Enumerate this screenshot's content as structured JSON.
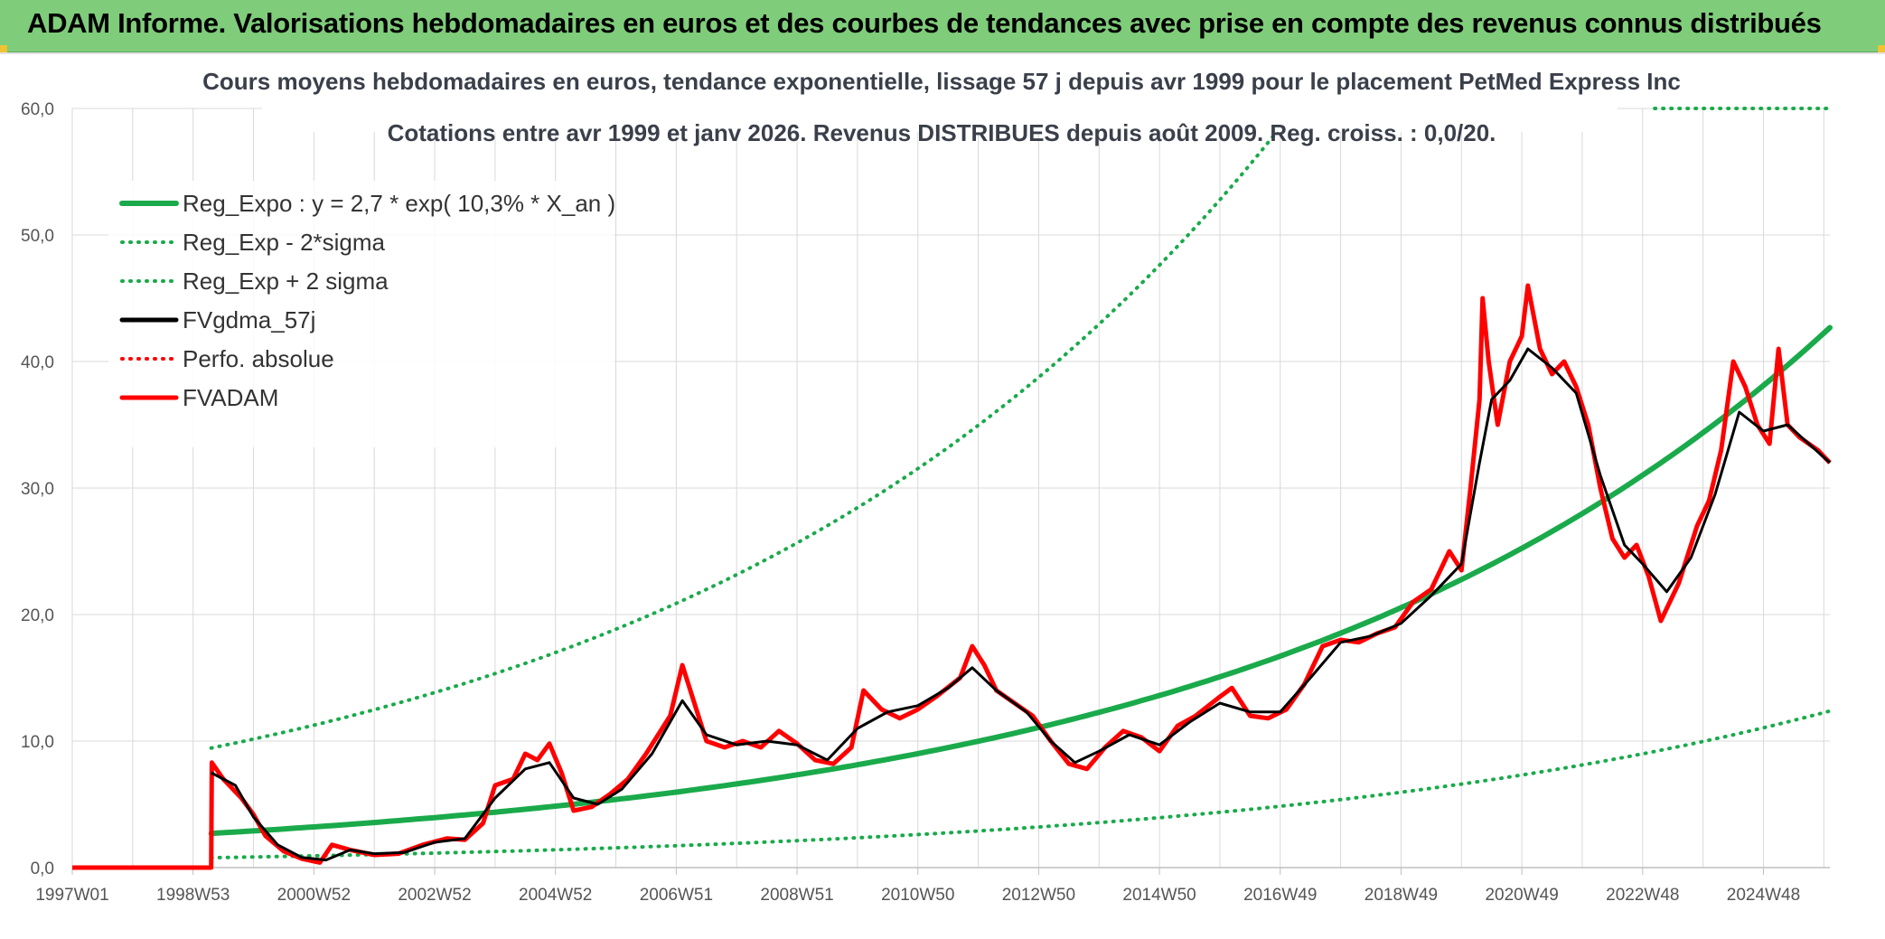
{
  "banner": {
    "title": "ADAM Informe. Valorisations hebdomadaires en euros et des courbes de tendances avec prise en compte des revenus connus distribués"
  },
  "colors": {
    "banner_bg": "#7fcc7a",
    "green": "#1aaa4b",
    "black": "#000000",
    "red": "#ff0000",
    "grid": "#d9d9d9",
    "corner": "#f1c232"
  },
  "chart_data": {
    "type": "line",
    "title": "Cours moyens hebdomadaires en euros, tendance exponentielle, lissage 57 j depuis avr 1999 pour le placement PetMed Express Inc",
    "subtitle": "Cotations entre avr 1999 et janv 2026. Revenus DISTRIBUES depuis août 2009. Reg. croiss. : 0,0/20.",
    "xlabel": "",
    "ylabel": "",
    "ylim": [
      0,
      60
    ],
    "xlim": [
      1997.0,
      2026.1
    ],
    "y_ticks": [
      "0,0",
      "10,0",
      "20,0",
      "30,0",
      "40,0",
      "50,0",
      "60,0"
    ],
    "x_ticks": [
      {
        "label": "1997W01",
        "year": 1997.0
      },
      {
        "label": "1998W53",
        "year": 1999.0
      },
      {
        "label": "2000W52",
        "year": 2001.0
      },
      {
        "label": "2002W52",
        "year": 2003.0
      },
      {
        "label": "2004W52",
        "year": 2005.0
      },
      {
        "label": "2006W51",
        "year": 2007.0
      },
      {
        "label": "2008W51",
        "year": 2009.0
      },
      {
        "label": "2010W50",
        "year": 2011.0
      },
      {
        "label": "2012W50",
        "year": 2013.0
      },
      {
        "label": "2014W50",
        "year": 2015.0
      },
      {
        "label": "2016W49",
        "year": 2017.0
      },
      {
        "label": "2018W49",
        "year": 2019.0
      },
      {
        "label": "2020W49",
        "year": 2021.0
      },
      {
        "label": "2022W48",
        "year": 2023.0
      },
      {
        "label": "2024W48",
        "year": 2025.0
      }
    ],
    "legend": [
      {
        "label": "Reg_Expo : y = 2,7 * exp( 10,3% *  X_an )",
        "style": "solid",
        "color": "#1aaa4b"
      },
      {
        "label": "Reg_Exp - 2*sigma",
        "style": "dotted",
        "color": "#1aaa4b"
      },
      {
        "label": "Reg_Exp + 2 sigma",
        "style": "dotted",
        "color": "#1aaa4b"
      },
      {
        "label": "FVgdma_57j",
        "style": "solid",
        "color": "#000000"
      },
      {
        "label": "Perfo. absolue",
        "style": "dotted",
        "color": "#ff0000"
      },
      {
        "label": "FVADAM",
        "style": "solid",
        "color": "#ff0000"
      }
    ],
    "regression": {
      "a": 2.7,
      "rate": 0.103,
      "start_year": 1999.3,
      "end_year": 2026.1
    },
    "lower_band_factor": 0.29,
    "upper_band_factor": 3.5,
    "series": [
      {
        "name": "FVADAM",
        "points": [
          [
            1997.0,
            0.0
          ],
          [
            1999.3,
            0.0
          ],
          [
            1999.31,
            8.3
          ],
          [
            1999.5,
            7.0
          ],
          [
            1999.8,
            5.5
          ],
          [
            2000.0,
            4.2
          ],
          [
            2000.2,
            2.5
          ],
          [
            2000.5,
            1.3
          ],
          [
            2000.8,
            0.7
          ],
          [
            2001.1,
            0.4
          ],
          [
            2001.3,
            1.8
          ],
          [
            2001.6,
            1.4
          ],
          [
            2002.0,
            1.0
          ],
          [
            2002.4,
            1.1
          ],
          [
            2002.8,
            1.8
          ],
          [
            2003.2,
            2.3
          ],
          [
            2003.5,
            2.2
          ],
          [
            2003.8,
            3.5
          ],
          [
            2004.0,
            6.5
          ],
          [
            2004.3,
            7.0
          ],
          [
            2004.5,
            9.0
          ],
          [
            2004.7,
            8.5
          ],
          [
            2004.9,
            9.8
          ],
          [
            2005.1,
            7.5
          ],
          [
            2005.3,
            4.5
          ],
          [
            2005.6,
            4.8
          ],
          [
            2005.9,
            5.8
          ],
          [
            2006.2,
            7.0
          ],
          [
            2006.5,
            9.0
          ],
          [
            2006.9,
            12.0
          ],
          [
            2007.1,
            16.0
          ],
          [
            2007.3,
            13.0
          ],
          [
            2007.5,
            10.0
          ],
          [
            2007.8,
            9.5
          ],
          [
            2008.1,
            10.0
          ],
          [
            2008.4,
            9.5
          ],
          [
            2008.7,
            10.8
          ],
          [
            2009.0,
            9.8
          ],
          [
            2009.3,
            8.5
          ],
          [
            2009.6,
            8.2
          ],
          [
            2009.9,
            9.5
          ],
          [
            2010.1,
            14.0
          ],
          [
            2010.4,
            12.5
          ],
          [
            2010.7,
            11.8
          ],
          [
            2011.0,
            12.5
          ],
          [
            2011.3,
            13.5
          ],
          [
            2011.7,
            15.0
          ],
          [
            2011.9,
            17.5
          ],
          [
            2012.1,
            16.0
          ],
          [
            2012.3,
            14.0
          ],
          [
            2012.6,
            13.0
          ],
          [
            2012.9,
            12.0
          ],
          [
            2013.2,
            10.0
          ],
          [
            2013.5,
            8.2
          ],
          [
            2013.8,
            7.8
          ],
          [
            2014.1,
            9.5
          ],
          [
            2014.4,
            10.8
          ],
          [
            2014.7,
            10.3
          ],
          [
            2015.0,
            9.2
          ],
          [
            2015.3,
            11.2
          ],
          [
            2015.6,
            12.0
          ],
          [
            2016.0,
            13.5
          ],
          [
            2016.2,
            14.2
          ],
          [
            2016.5,
            12.0
          ],
          [
            2016.8,
            11.8
          ],
          [
            2017.1,
            12.5
          ],
          [
            2017.4,
            14.5
          ],
          [
            2017.7,
            17.5
          ],
          [
            2018.0,
            18.0
          ],
          [
            2018.3,
            17.8
          ],
          [
            2018.6,
            18.5
          ],
          [
            2018.9,
            19.0
          ],
          [
            2019.2,
            21.0
          ],
          [
            2019.5,
            22.0
          ],
          [
            2019.8,
            25.0
          ],
          [
            2020.0,
            23.5
          ],
          [
            2020.15,
            30.0
          ],
          [
            2020.3,
            37.0
          ],
          [
            2020.35,
            45.0
          ],
          [
            2020.45,
            40.0
          ],
          [
            2020.6,
            35.0
          ],
          [
            2020.8,
            40.0
          ],
          [
            2021.0,
            42.0
          ],
          [
            2021.1,
            46.0
          ],
          [
            2021.3,
            41.0
          ],
          [
            2021.5,
            39.0
          ],
          [
            2021.7,
            40.0
          ],
          [
            2021.9,
            38.0
          ],
          [
            2022.1,
            35.0
          ],
          [
            2022.3,
            30.0
          ],
          [
            2022.5,
            26.0
          ],
          [
            2022.7,
            24.5
          ],
          [
            2022.9,
            25.5
          ],
          [
            2023.1,
            23.0
          ],
          [
            2023.3,
            19.5
          ],
          [
            2023.6,
            22.5
          ],
          [
            2023.9,
            27.0
          ],
          [
            2024.1,
            29.0
          ],
          [
            2024.3,
            33.0
          ],
          [
            2024.5,
            40.0
          ],
          [
            2024.7,
            38.0
          ],
          [
            2024.9,
            35.0
          ],
          [
            2025.1,
            33.5
          ],
          [
            2025.25,
            41.0
          ],
          [
            2025.4,
            35.0
          ],
          [
            2025.6,
            34.0
          ],
          [
            2025.9,
            33.0
          ],
          [
            2026.1,
            32.0
          ]
        ]
      },
      {
        "name": "FVgdma_57j",
        "points": [
          [
            1999.3,
            7.5
          ],
          [
            1999.7,
            6.5
          ],
          [
            2000.0,
            4.0
          ],
          [
            2000.4,
            1.8
          ],
          [
            2000.8,
            0.8
          ],
          [
            2001.2,
            0.6
          ],
          [
            2001.6,
            1.4
          ],
          [
            2002.0,
            1.1
          ],
          [
            2002.5,
            1.2
          ],
          [
            2003.0,
            2.0
          ],
          [
            2003.5,
            2.3
          ],
          [
            2004.0,
            5.5
          ],
          [
            2004.5,
            7.8
          ],
          [
            2004.9,
            8.3
          ],
          [
            2005.3,
            5.5
          ],
          [
            2005.7,
            5.0
          ],
          [
            2006.1,
            6.2
          ],
          [
            2006.6,
            9.0
          ],
          [
            2007.1,
            13.2
          ],
          [
            2007.5,
            10.5
          ],
          [
            2008.0,
            9.7
          ],
          [
            2008.5,
            10.0
          ],
          [
            2009.0,
            9.7
          ],
          [
            2009.5,
            8.5
          ],
          [
            2010.0,
            11.0
          ],
          [
            2010.5,
            12.3
          ],
          [
            2011.0,
            12.8
          ],
          [
            2011.5,
            14.2
          ],
          [
            2011.9,
            15.8
          ],
          [
            2012.3,
            14.0
          ],
          [
            2012.8,
            12.3
          ],
          [
            2013.2,
            10.0
          ],
          [
            2013.6,
            8.3
          ],
          [
            2014.0,
            9.2
          ],
          [
            2014.5,
            10.5
          ],
          [
            2015.0,
            9.7
          ],
          [
            2015.5,
            11.5
          ],
          [
            2016.0,
            13.0
          ],
          [
            2016.5,
            12.3
          ],
          [
            2017.0,
            12.3
          ],
          [
            2017.5,
            15.0
          ],
          [
            2018.0,
            17.8
          ],
          [
            2018.5,
            18.3
          ],
          [
            2019.0,
            19.3
          ],
          [
            2019.5,
            21.5
          ],
          [
            2020.0,
            24.0
          ],
          [
            2020.3,
            32.0
          ],
          [
            2020.5,
            37.0
          ],
          [
            2020.8,
            38.5
          ],
          [
            2021.1,
            41.0
          ],
          [
            2021.5,
            39.5
          ],
          [
            2021.9,
            37.5
          ],
          [
            2022.3,
            31.0
          ],
          [
            2022.7,
            25.5
          ],
          [
            2023.0,
            24.0
          ],
          [
            2023.4,
            21.8
          ],
          [
            2023.8,
            24.5
          ],
          [
            2024.2,
            29.5
          ],
          [
            2024.6,
            36.0
          ],
          [
            2025.0,
            34.5
          ],
          [
            2025.4,
            35.0
          ],
          [
            2026.1,
            32.0
          ]
        ]
      }
    ]
  }
}
